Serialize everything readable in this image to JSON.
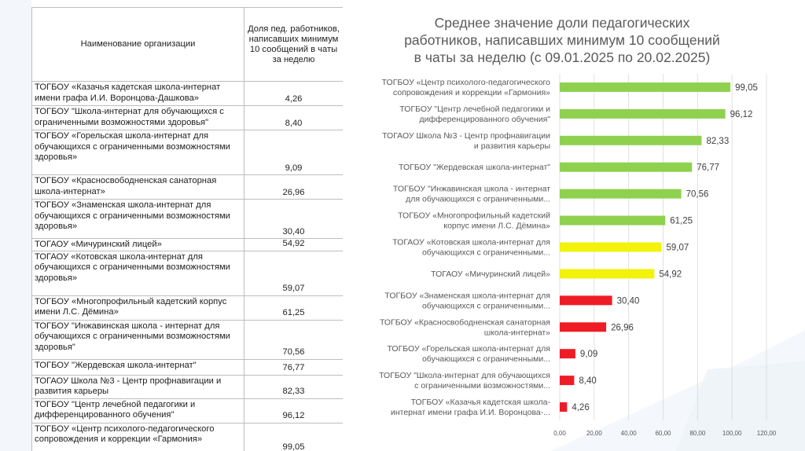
{
  "table": {
    "header_name": "Наименование организации",
    "header_value": "Доля пед. работников, написавших минимум 10 сообщений в чаты за неделю",
    "rows": [
      {
        "name": "ТОГБОУ «Казачья кадетская школа-интернат имени графа И.И. Воронцова-Дашкова»",
        "value": "4,26"
      },
      {
        "name": "ТОГБОУ \"Школа-интернат для обучающихся с ограниченными возможностями здоровья\"",
        "value": "8,40"
      },
      {
        "name": "ТОГБОУ «Горельская школа-интернат для обучающихся с ограниченными возможностями здоровья»",
        "value": "9,09"
      },
      {
        "name": "ТОГБОУ «Красносвободненская санаторная школа-интернат»",
        "value": "26,96"
      },
      {
        "name": "ТОГБОУ «Знаменская школа-интернат для обучающихся с ограниченными возможностями здоровья»",
        "value": "30,40"
      },
      {
        "name": "ТОГАОУ «Мичуринский лицей»",
        "value": "54,92"
      },
      {
        "name": "ТОГАОУ «Котовская школа-интернат для обучающихся с ограниченными возможностями здоровья»",
        "value": "59,07"
      },
      {
        "name": "ТОГБОУ «Многопрофильный кадетский корпус имени Л.С. Дёмина»",
        "value": "61,25"
      },
      {
        "name": "ТОГБОУ \"Инжавинская школа - интернат для обучающихся с ограниченными возможностями здоровья\"",
        "value": "70,56"
      },
      {
        "name": "ТОГБОУ \"Жердевская школа-интернат\"",
        "value": "76,77"
      },
      {
        "name": "ТОГАОУ Школа №3 - Центр профнавигации и развития карьеры",
        "value": "82,33"
      },
      {
        "name": "ТОГБОУ \"Центр лечебной педагогики и дифференцированного обучения\"",
        "value": "96,12"
      },
      {
        "name": "ТОГБОУ «Центр психолого-педагогического сопровождения и коррекции «Гармония»",
        "value": "99,05"
      }
    ]
  },
  "colors": {
    "green": "#8fd14f",
    "yellow": "#f2f20a",
    "red": "#ee1c25"
  },
  "chart_data": {
    "type": "bar",
    "orientation": "horizontal",
    "title_lines": [
      "Среднее значение доли педагогических",
      "работников, написавших минимум 10 сообщений",
      "в чаты за неделю (с 09.01.2025 по 20.02.2025)"
    ],
    "categories": [
      [
        "ТОГБОУ «Центр психолого-педагогического",
        "сопровождения и коррекции «Гармония»"
      ],
      [
        "ТОГБОУ \"Центр лечебной педагогики и",
        "дифференцированного обучения\""
      ],
      [
        "ТОГАОУ Школа №3 - Центр профнавигации",
        "и развития карьеры"
      ],
      [
        "ТОГБОУ \"Жердевская школа-интернат\""
      ],
      [
        "ТОГБОУ \"Инжавинская школа - интернат",
        "для обучающихся с ограниченными..."
      ],
      [
        "ТОГБОУ «Многопрофильный кадетский",
        "корпус имени Л.С. Дёмина»"
      ],
      [
        "ТОГАОУ «Котовская школа-интернат для",
        "обучающихся с ограниченными..."
      ],
      [
        "ТОГАОУ «Мичуринский лицей»"
      ],
      [
        "ТОГБОУ «Знаменская школа-интернат для",
        "обучающихся с ограниченными..."
      ],
      [
        "ТОГБОУ «Красносвободненская санаторная",
        "школа-интернат»"
      ],
      [
        "ТОГБОУ «Горельская школа-интернат для",
        "обучающихся с ограниченными..."
      ],
      [
        "ТОГБОУ \"Школа-интернат для обучающихся",
        "с ограниченными возможностями..."
      ],
      [
        "ТОГБОУ «Казачья кадетская школа-",
        "интернат имени графа И.И. Воронцова-..."
      ]
    ],
    "values": [
      99.05,
      96.12,
      82.33,
      76.77,
      70.56,
      61.25,
      59.07,
      54.92,
      30.4,
      26.96,
      9.09,
      8.4,
      4.26
    ],
    "value_labels": [
      "99,05",
      "96,12",
      "82,33",
      "76,77",
      "70,56",
      "61,25",
      "59,07",
      "54,92",
      "30,40",
      "26,96",
      "9,09",
      "8,40",
      "4,26"
    ],
    "bar_colors": [
      "green",
      "green",
      "green",
      "green",
      "green",
      "green",
      "yellow",
      "yellow",
      "red",
      "red",
      "red",
      "red",
      "red"
    ],
    "x_ticks": [
      "0,00",
      "20,00",
      "40,00",
      "60,00",
      "80,00",
      "100,00",
      "120,00"
    ],
    "xlim": [
      0,
      120
    ],
    "grid": true
  }
}
